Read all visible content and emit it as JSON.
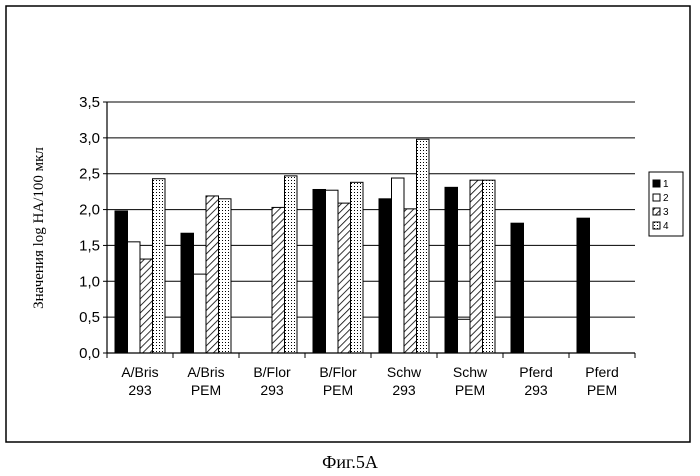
{
  "caption": "Фиг.5А",
  "chart_data": {
    "type": "bar",
    "ylabel": "Значения log HA/100 мкл",
    "ylim": [
      0,
      3.5
    ],
    "yticks": [
      "0,0",
      "0,5",
      "1,0",
      "1,5",
      "2,0",
      "2,5",
      "3,0",
      "3,5"
    ],
    "grid": true,
    "legend_position": "right",
    "categories": [
      [
        "A/Bris",
        "293"
      ],
      [
        "A/Bris",
        "PEM"
      ],
      [
        "B/Flor",
        "293"
      ],
      [
        "B/Flor",
        "PEM"
      ],
      [
        "Schw",
        "293"
      ],
      [
        "Schw",
        "PEM"
      ],
      [
        "Pferd",
        "293"
      ],
      [
        "Pferd",
        "PEM"
      ]
    ],
    "series": [
      {
        "name": "1",
        "pattern": "solid",
        "values": [
          1.98,
          1.67,
          null,
          2.28,
          2.15,
          2.31,
          1.81,
          1.88
        ]
      },
      {
        "name": "2",
        "pattern": "empty",
        "values": [
          1.55,
          1.1,
          null,
          2.27,
          2.44,
          0.47,
          null,
          null
        ]
      },
      {
        "name": "3",
        "pattern": "hatch",
        "values": [
          1.31,
          2.19,
          2.03,
          2.09,
          2.01,
          2.41,
          null,
          null
        ]
      },
      {
        "name": "4",
        "pattern": "dotted",
        "values": [
          2.43,
          2.15,
          2.47,
          2.38,
          2.98,
          2.41,
          null,
          null
        ]
      }
    ]
  }
}
